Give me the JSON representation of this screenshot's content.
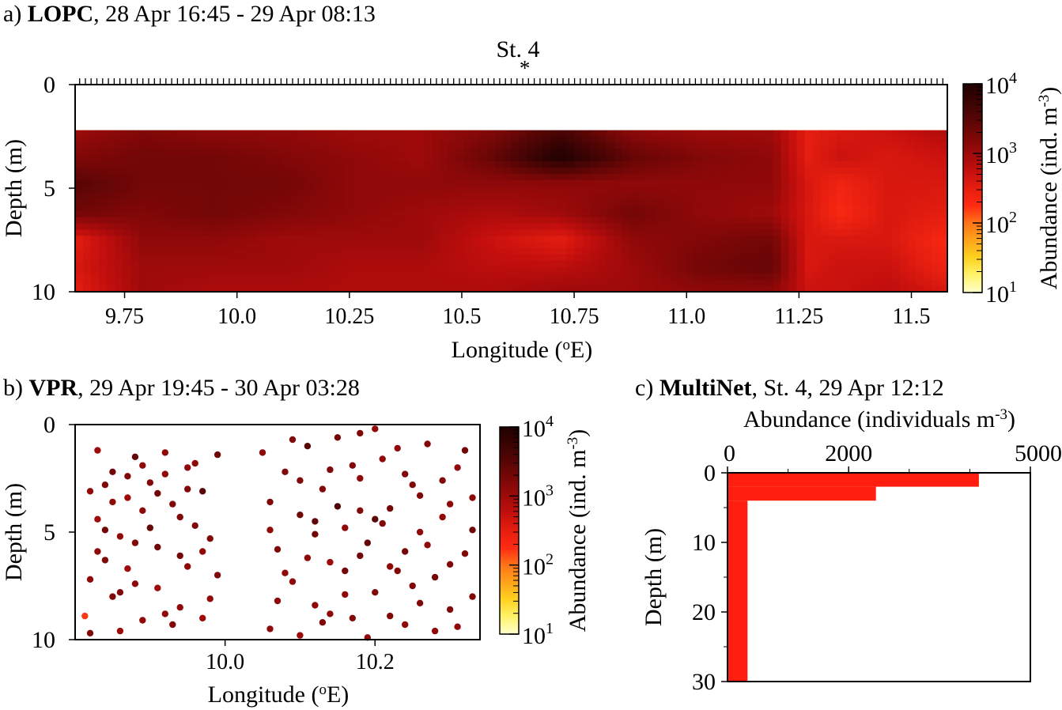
{
  "colors": {
    "colormap": [
      "#ffffcc",
      "#fff36b",
      "#ffd21f",
      "#ffa31a",
      "#ff7518",
      "#ff2a12",
      "#e51e10",
      "#c40f0d",
      "#9e0a0a",
      "#7a0707",
      "#570505",
      "#3a0303",
      "#1f0101"
    ],
    "bar_fill": "#ff1e10",
    "frame": "#000000"
  },
  "chart_data": [
    {
      "panel": "a",
      "type": "heatmap",
      "title": {
        "letter": "a)",
        "name": "LOPC",
        "time": ", 28 Apr 16:45 - 29 Apr 08:13"
      },
      "station_label": "St. 4",
      "station_marker": "*",
      "station_longitude": 10.64,
      "xlabel": "Longitude (",
      "xlabel_sup": "o",
      "xlabel_end": "E)",
      "ylabel": "Depth (m)",
      "xlim": [
        9.64,
        11.58
      ],
      "ylim": [
        10,
        0
      ],
      "data_ylim": [
        2.2,
        10
      ],
      "xticks": [
        "9.75",
        "10.0",
        "10.25",
        "10.5",
        "10.75",
        "11.0",
        "11.25",
        "11.5"
      ],
      "xtick_values": [
        9.75,
        10.0,
        10.25,
        10.5,
        10.75,
        11.0,
        11.25,
        11.5
      ],
      "yticks": [
        "0",
        "5",
        "10"
      ],
      "ytick_values": [
        0,
        5,
        10
      ],
      "colorbar": {
        "label": "Abundance (ind. m",
        "label_sup": "-3",
        "label_end": ")",
        "log_range": [
          1,
          4
        ],
        "ticks": [
          {
            "base": "10",
            "exp": "1"
          },
          {
            "base": "10",
            "exp": "2"
          },
          {
            "base": "10",
            "exp": "3"
          },
          {
            "base": "10",
            "exp": "4"
          }
        ]
      },
      "lon_nodes": [
        9.64,
        9.79,
        9.95,
        10.1,
        10.26,
        10.41,
        10.57,
        10.72,
        10.88,
        11.03,
        11.19,
        11.27,
        11.34,
        11.45,
        11.58
      ],
      "depth_nodes": [
        2.2,
        3.5,
        4.8,
        6.2,
        7.5,
        8.8,
        10.0
      ],
      "log_abundance": [
        [
          3.0,
          3.2,
          3.1,
          3.1,
          3.0,
          3.0,
          3.2,
          3.6,
          3.1,
          3.0,
          3.0,
          2.5,
          2.6,
          2.7,
          2.9
        ],
        [
          3.2,
          3.3,
          3.3,
          3.2,
          3.1,
          3.0,
          3.4,
          4.0,
          3.4,
          3.2,
          3.1,
          2.5,
          2.7,
          2.6,
          2.7
        ],
        [
          3.5,
          3.3,
          3.3,
          3.3,
          3.1,
          3.1,
          3.1,
          3.1,
          3.1,
          3.1,
          3.1,
          2.6,
          2.4,
          2.6,
          2.6
        ],
        [
          3.3,
          3.2,
          3.3,
          3.2,
          3.1,
          3.0,
          2.9,
          3.0,
          3.3,
          3.1,
          3.0,
          2.6,
          2.3,
          2.6,
          2.5
        ],
        [
          2.5,
          3.1,
          3.1,
          3.0,
          3.0,
          3.0,
          2.7,
          2.5,
          3.1,
          3.2,
          3.3,
          2.6,
          2.6,
          2.6,
          2.3
        ],
        [
          2.6,
          3.0,
          3.0,
          3.0,
          2.9,
          2.9,
          2.8,
          2.8,
          3.0,
          3.3,
          3.4,
          2.6,
          2.7,
          2.7,
          2.4
        ],
        [
          2.5,
          3.0,
          2.9,
          2.9,
          2.9,
          2.9,
          2.9,
          3.0,
          3.0,
          3.1,
          3.1,
          2.7,
          2.7,
          2.8,
          2.6
        ]
      ]
    },
    {
      "panel": "b",
      "type": "scatter",
      "title": {
        "letter": "b)",
        "name": "VPR",
        "time": ", 29 Apr 19:45 - 30 Apr 03:28"
      },
      "xlabel": "Longitude (",
      "xlabel_sup": "o",
      "xlabel_end": "E)",
      "ylabel": "Depth (m)",
      "xlim": [
        9.8,
        10.34
      ],
      "ylim": [
        10,
        0
      ],
      "xticks": [
        "10.0",
        "10.2"
      ],
      "xtick_values": [
        10.0,
        10.2
      ],
      "yticks": [
        "0",
        "5",
        "10"
      ],
      "ytick_values": [
        0,
        5,
        10
      ],
      "colorbar": {
        "label": "Abundance (ind. m",
        "label_sup": "-3",
        "label_end": ")",
        "log_range": [
          1,
          4
        ],
        "ticks": [
          {
            "base": "10",
            "exp": "1"
          },
          {
            "base": "10",
            "exp": "2"
          },
          {
            "base": "10",
            "exp": "3"
          },
          {
            "base": "10",
            "exp": "4"
          }
        ]
      },
      "points": [
        [
          9.813,
          8.9,
          2.2
        ],
        [
          9.82,
          3.1,
          3.1
        ],
        [
          9.83,
          4.4,
          3.0
        ],
        [
          9.84,
          6.3,
          3.2
        ],
        [
          9.82,
          7.2,
          3.1
        ],
        [
          9.83,
          1.2,
          3.0
        ],
        [
          9.85,
          2.2,
          3.3
        ],
        [
          9.86,
          5.2,
          3.1
        ],
        [
          9.87,
          3.4,
          3.0
        ],
        [
          9.85,
          8.0,
          3.2
        ],
        [
          9.88,
          1.5,
          3.4
        ],
        [
          9.89,
          4.0,
          3.1
        ],
        [
          9.87,
          6.7,
          3.0
        ],
        [
          9.9,
          2.7,
          3.2
        ],
        [
          9.91,
          5.7,
          3.3
        ],
        [
          9.89,
          9.1,
          3.1
        ],
        [
          9.92,
          1.3,
          3.1
        ],
        [
          9.93,
          3.7,
          3.2
        ],
        [
          9.91,
          7.6,
          3.0
        ],
        [
          9.94,
          6.1,
          3.3
        ],
        [
          9.95,
          2.0,
          3.1
        ],
        [
          9.96,
          4.7,
          3.2
        ],
        [
          9.94,
          8.5,
          3.1
        ],
        [
          9.97,
          3.1,
          3.5
        ],
        [
          9.98,
          5.3,
          3.2
        ],
        [
          9.96,
          1.8,
          3.1
        ],
        [
          9.99,
          7.0,
          3.2
        ],
        [
          9.86,
          9.6,
          3.0
        ],
        [
          9.9,
          4.8,
          3.4
        ],
        [
          9.93,
          9.3,
          3.2
        ],
        [
          9.95,
          6.6,
          3.1
        ],
        [
          9.98,
          8.1,
          3.1
        ],
        [
          9.84,
          4.9,
          3.3
        ],
        [
          9.87,
          2.4,
          3.2
        ],
        [
          9.92,
          2.3,
          3.1
        ],
        [
          9.97,
          9.0,
          3.0
        ],
        [
          9.82,
          9.7,
          3.2
        ],
        [
          9.88,
          7.4,
          3.1
        ],
        [
          9.99,
          1.4,
          3.3
        ],
        [
          9.85,
          3.6,
          3.1
        ],
        [
          10.05,
          1.3,
          3.1
        ],
        [
          10.07,
          5.8,
          3.2
        ],
        [
          10.06,
          9.5,
          3.1
        ],
        [
          10.08,
          2.2,
          3.2
        ],
        [
          10.09,
          7.3,
          3.1
        ],
        [
          10.1,
          4.2,
          3.3
        ],
        [
          10.11,
          1.0,
          3.5
        ],
        [
          10.12,
          8.4,
          3.1
        ],
        [
          10.13,
          3.0,
          3.2
        ],
        [
          10.14,
          6.4,
          3.0
        ],
        [
          10.15,
          0.6,
          3.3
        ],
        [
          10.16,
          4.8,
          3.1
        ],
        [
          10.17,
          9.0,
          3.2
        ],
        [
          10.18,
          2.5,
          3.1
        ],
        [
          10.19,
          5.5,
          3.4
        ],
        [
          10.2,
          7.8,
          3.2
        ],
        [
          10.21,
          1.6,
          3.1
        ],
        [
          10.22,
          3.9,
          3.3
        ],
        [
          10.23,
          6.8,
          3.2
        ],
        [
          10.24,
          9.3,
          3.1
        ],
        [
          10.25,
          2.8,
          3.2
        ],
        [
          10.26,
          5.0,
          3.1
        ],
        [
          10.27,
          0.9,
          3.2
        ],
        [
          10.28,
          7.1,
          3.3
        ],
        [
          10.29,
          4.3,
          3.1
        ],
        [
          10.3,
          8.6,
          3.2
        ],
        [
          10.31,
          2.0,
          3.1
        ],
        [
          10.32,
          6.0,
          3.2
        ],
        [
          10.33,
          3.4,
          3.1
        ],
        [
          10.33,
          8.0,
          3.2
        ],
        [
          10.06,
          3.6,
          3.2
        ],
        [
          10.08,
          6.9,
          3.1
        ],
        [
          10.1,
          9.8,
          3.0
        ],
        [
          10.12,
          5.1,
          3.3
        ],
        [
          10.14,
          2.1,
          3.2
        ],
        [
          10.16,
          7.9,
          3.1
        ],
        [
          10.18,
          4.0,
          3.2
        ],
        [
          10.2,
          0.2,
          3.1
        ],
        [
          10.22,
          8.9,
          3.2
        ],
        [
          10.24,
          5.9,
          3.3
        ],
        [
          10.26,
          3.3,
          3.2
        ],
        [
          10.28,
          9.6,
          3.1
        ],
        [
          10.3,
          6.5,
          3.2
        ],
        [
          10.32,
          1.2,
          3.3
        ],
        [
          10.07,
          8.2,
          3.1
        ],
        [
          10.09,
          0.7,
          3.2
        ],
        [
          10.11,
          6.2,
          3.1
        ],
        [
          10.13,
          9.2,
          3.2
        ],
        [
          10.15,
          3.8,
          3.6
        ],
        [
          10.17,
          1.9,
          3.2
        ],
        [
          10.19,
          9.9,
          3.1
        ],
        [
          10.21,
          4.6,
          3.2
        ],
        [
          10.23,
          1.1,
          3.1
        ],
        [
          10.25,
          7.5,
          3.2
        ],
        [
          10.27,
          5.6,
          3.1
        ],
        [
          10.29,
          2.6,
          3.2
        ],
        [
          10.31,
          9.4,
          3.1
        ],
        [
          10.33,
          4.9,
          3.3
        ],
        [
          10.12,
          4.5,
          3.4
        ],
        [
          10.18,
          6.1,
          3.3
        ],
        [
          9.83,
          5.9,
          3.1
        ],
        [
          9.86,
          7.8,
          3.2
        ],
        [
          9.89,
          1.9,
          3.1
        ],
        [
          9.91,
          3.2,
          3.3
        ],
        [
          9.94,
          4.3,
          3.2
        ],
        [
          9.97,
          5.9,
          3.1
        ],
        [
          9.84,
          2.8,
          3.2
        ],
        [
          9.88,
          5.5,
          3.2
        ],
        [
          9.92,
          8.8,
          3.1
        ],
        [
          9.95,
          3.0,
          3.2
        ],
        [
          10.06,
          4.9,
          3.1
        ],
        [
          10.1,
          2.6,
          3.2
        ],
        [
          10.14,
          8.8,
          3.1
        ],
        [
          10.18,
          0.4,
          3.2
        ],
        [
          10.22,
          6.6,
          3.1
        ],
        [
          10.26,
          8.3,
          3.2
        ],
        [
          10.3,
          3.7,
          3.1
        ],
        [
          10.16,
          6.8,
          3.3
        ],
        [
          10.2,
          4.4,
          3.5
        ],
        [
          10.24,
          2.3,
          3.2
        ]
      ]
    },
    {
      "panel": "c",
      "type": "bar",
      "orientation": "horizontal",
      "title": {
        "letter": "c)",
        "name": "MultiNet",
        "time": ", St. 4, 29 Apr 12:12"
      },
      "xlabel": "Abundance (individuals m",
      "xlabel_sup": "-3",
      "xlabel_end": ")",
      "ylabel": "Depth (m)",
      "xlim": [
        0,
        5000
      ],
      "ylim": [
        30,
        0
      ],
      "xticks": [
        "0",
        "2000",
        "5000"
      ],
      "xtick_values": [
        0,
        2000,
        5000
      ],
      "yticks": [
        "0",
        "10",
        "20",
        "30"
      ],
      "ytick_values": [
        0,
        10,
        20,
        30
      ],
      "bars": [
        {
          "depth_from": 0,
          "depth_to": 2,
          "abundance": 4150
        },
        {
          "depth_from": 2,
          "depth_to": 4,
          "abundance": 2450
        },
        {
          "depth_from": 4,
          "depth_to": 30,
          "abundance": 330
        }
      ]
    }
  ]
}
